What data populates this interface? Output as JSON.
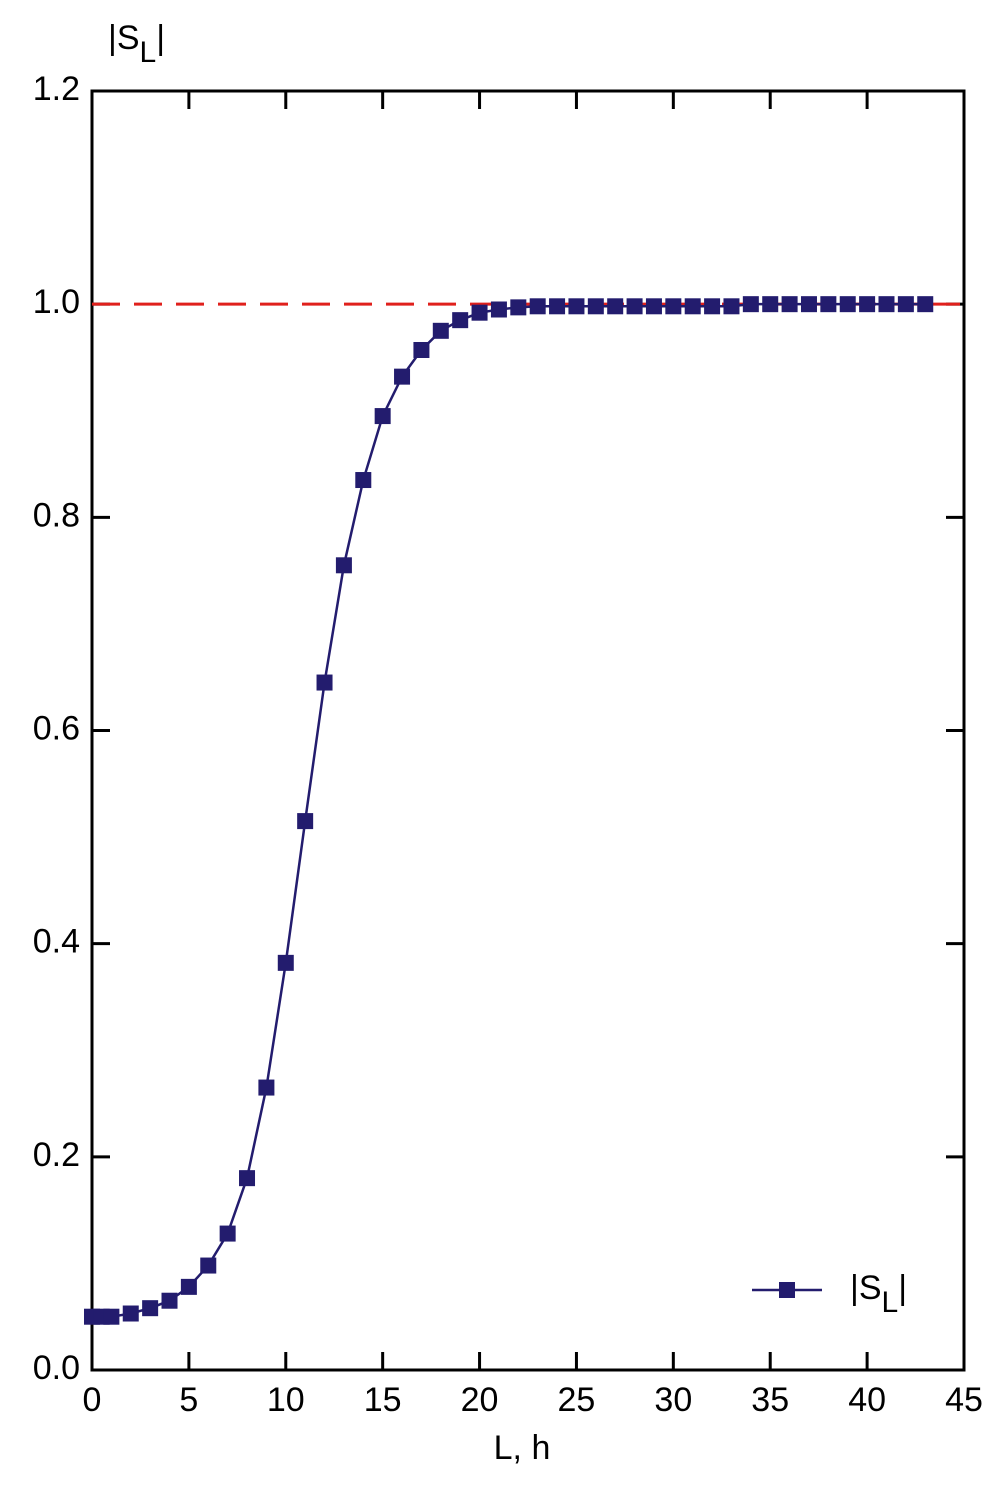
{
  "chart_data": {
    "type": "line",
    "ylabel": [
      "|S",
      "L",
      "|"
    ],
    "xlabel": "L, h",
    "x": [
      0,
      0.5,
      1,
      2,
      3,
      4,
      5,
      6,
      7,
      8,
      9,
      10,
      11,
      12,
      13,
      14,
      15,
      16,
      17,
      18,
      19,
      20,
      21,
      22,
      23,
      24,
      25,
      26,
      27,
      28,
      29,
      30,
      31,
      32,
      33,
      34,
      35,
      36,
      37,
      38,
      39,
      40,
      41,
      42,
      43
    ],
    "series": [
      {
        "name": [
          "|S",
          "L",
          "|"
        ],
        "color": "#231c6e",
        "values": [
          0.05,
          0.05,
          0.05,
          0.053,
          0.058,
          0.065,
          0.078,
          0.098,
          0.128,
          0.18,
          0.265,
          0.382,
          0.515,
          0.645,
          0.755,
          0.835,
          0.895,
          0.932,
          0.957,
          0.975,
          0.985,
          0.992,
          0.995,
          0.997,
          0.998,
          0.998,
          0.998,
          0.998,
          0.998,
          0.998,
          0.998,
          0.998,
          0.998,
          0.998,
          0.998,
          1.0,
          1.0,
          1.0,
          1.0,
          1.0,
          1.0,
          1.0,
          1.0,
          1.0,
          1.0
        ]
      }
    ],
    "reference_line": {
      "value": 1.0,
      "color": "#e0201c"
    },
    "xlim": [
      0,
      45
    ],
    "xticks": [
      0,
      5,
      10,
      15,
      20,
      25,
      30,
      35,
      40,
      45
    ],
    "ylim": [
      0,
      1.2
    ],
    "yticks": [
      {
        "value": 0,
        "label": "0.0"
      },
      0.2,
      0.4,
      0.6,
      0.8,
      {
        "value": 1,
        "label": "1.0"
      },
      1.2
    ],
    "legend": "lower right"
  }
}
